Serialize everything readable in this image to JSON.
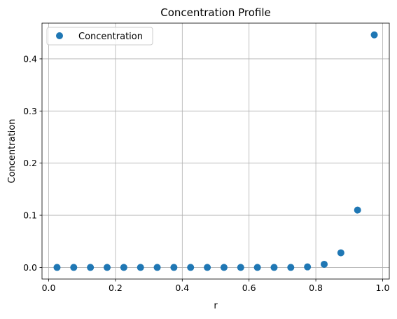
{
  "chart_data": {
    "type": "scatter",
    "title": "Concentration Profile",
    "xlabel": "r",
    "ylabel": "Concentration",
    "xlim": [
      -0.02,
      1.02
    ],
    "ylim": [
      -0.0223,
      0.4685
    ],
    "xticks": [
      0.0,
      0.2,
      0.4,
      0.6,
      0.8,
      1.0
    ],
    "xtick_labels": [
      "0.0",
      "0.2",
      "0.4",
      "0.6",
      "0.8",
      "1.0"
    ],
    "yticks": [
      0.0,
      0.1,
      0.2,
      0.3,
      0.4
    ],
    "ytick_labels": [
      "0.0",
      "0.1",
      "0.2",
      "0.3",
      "0.4"
    ],
    "grid": true,
    "legend_position": "top-left",
    "series": [
      {
        "name": "Concentration",
        "color": "#1f77b4",
        "marker": "circle",
        "x": [
          0.025,
          0.075,
          0.125,
          0.175,
          0.225,
          0.275,
          0.325,
          0.375,
          0.425,
          0.475,
          0.525,
          0.575,
          0.625,
          0.675,
          0.725,
          0.775,
          0.825,
          0.875,
          0.925,
          0.975
        ],
        "y": [
          0.0,
          0.0,
          0.0,
          0.0,
          0.0,
          0.0,
          0.0,
          0.0,
          0.0,
          0.0,
          0.0,
          0.0,
          0.0,
          0.0,
          0.0,
          0.001,
          0.006,
          0.028,
          0.11,
          0.446
        ]
      }
    ]
  }
}
